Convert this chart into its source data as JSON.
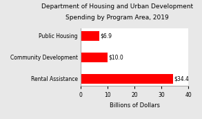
{
  "title_line1": "Department of Housing and Urban Development",
  "title_line2": "Spending by Program Area, 2019",
  "categories": [
    "Public Housing",
    "Community Development",
    "Rental Assistance"
  ],
  "values": [
    6.9,
    10.0,
    34.4
  ],
  "labels": [
    "$6.9",
    "$10.0",
    "$34.4"
  ],
  "bar_color": "#ff0000",
  "xlim": [
    0,
    40
  ],
  "xticks": [
    0,
    10,
    20,
    30,
    40
  ],
  "xlabel": "Billions of Dollars",
  "background_color": "#e8e8e8",
  "plot_bg_color": "#ffffff",
  "title_fontsize": 6.5,
  "label_fontsize": 5.5,
  "tick_fontsize": 5.5,
  "xlabel_fontsize": 6.0,
  "bar_height": 0.45
}
